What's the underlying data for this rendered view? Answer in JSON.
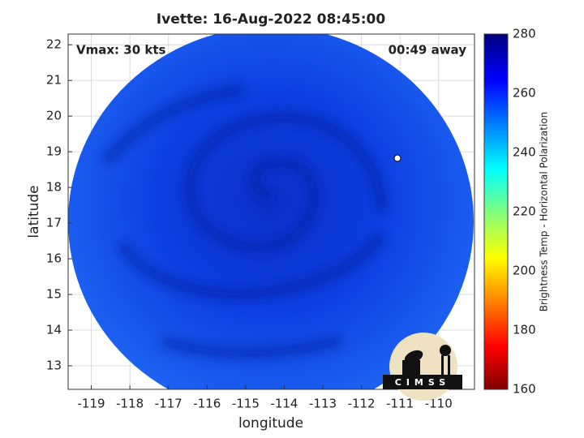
{
  "chart_data": {
    "type": "image",
    "title": "Ivette: 16-Aug-2022 08:45:00",
    "annotations": [
      "Vmax: 30 kts",
      "00:49 away"
    ],
    "xlabel": "longitude",
    "ylabel": "latitude",
    "xlim": [
      -119.6,
      -109.07
    ],
    "ylim": [
      12.34,
      22.3
    ],
    "xticks": [
      -119,
      -118,
      -117,
      -116,
      -115,
      -114,
      -113,
      -112,
      -111,
      -110
    ],
    "yticks": [
      13,
      14,
      15,
      16,
      17,
      18,
      19,
      20,
      21,
      22
    ],
    "grid": true,
    "colorbar": {
      "label": "Brightness Temp - Horizontal Polarization",
      "lim": [
        160,
        280
      ],
      "ticks": [
        160,
        180,
        200,
        220,
        240,
        260,
        280
      ]
    },
    "logo": "CIMSS"
  }
}
